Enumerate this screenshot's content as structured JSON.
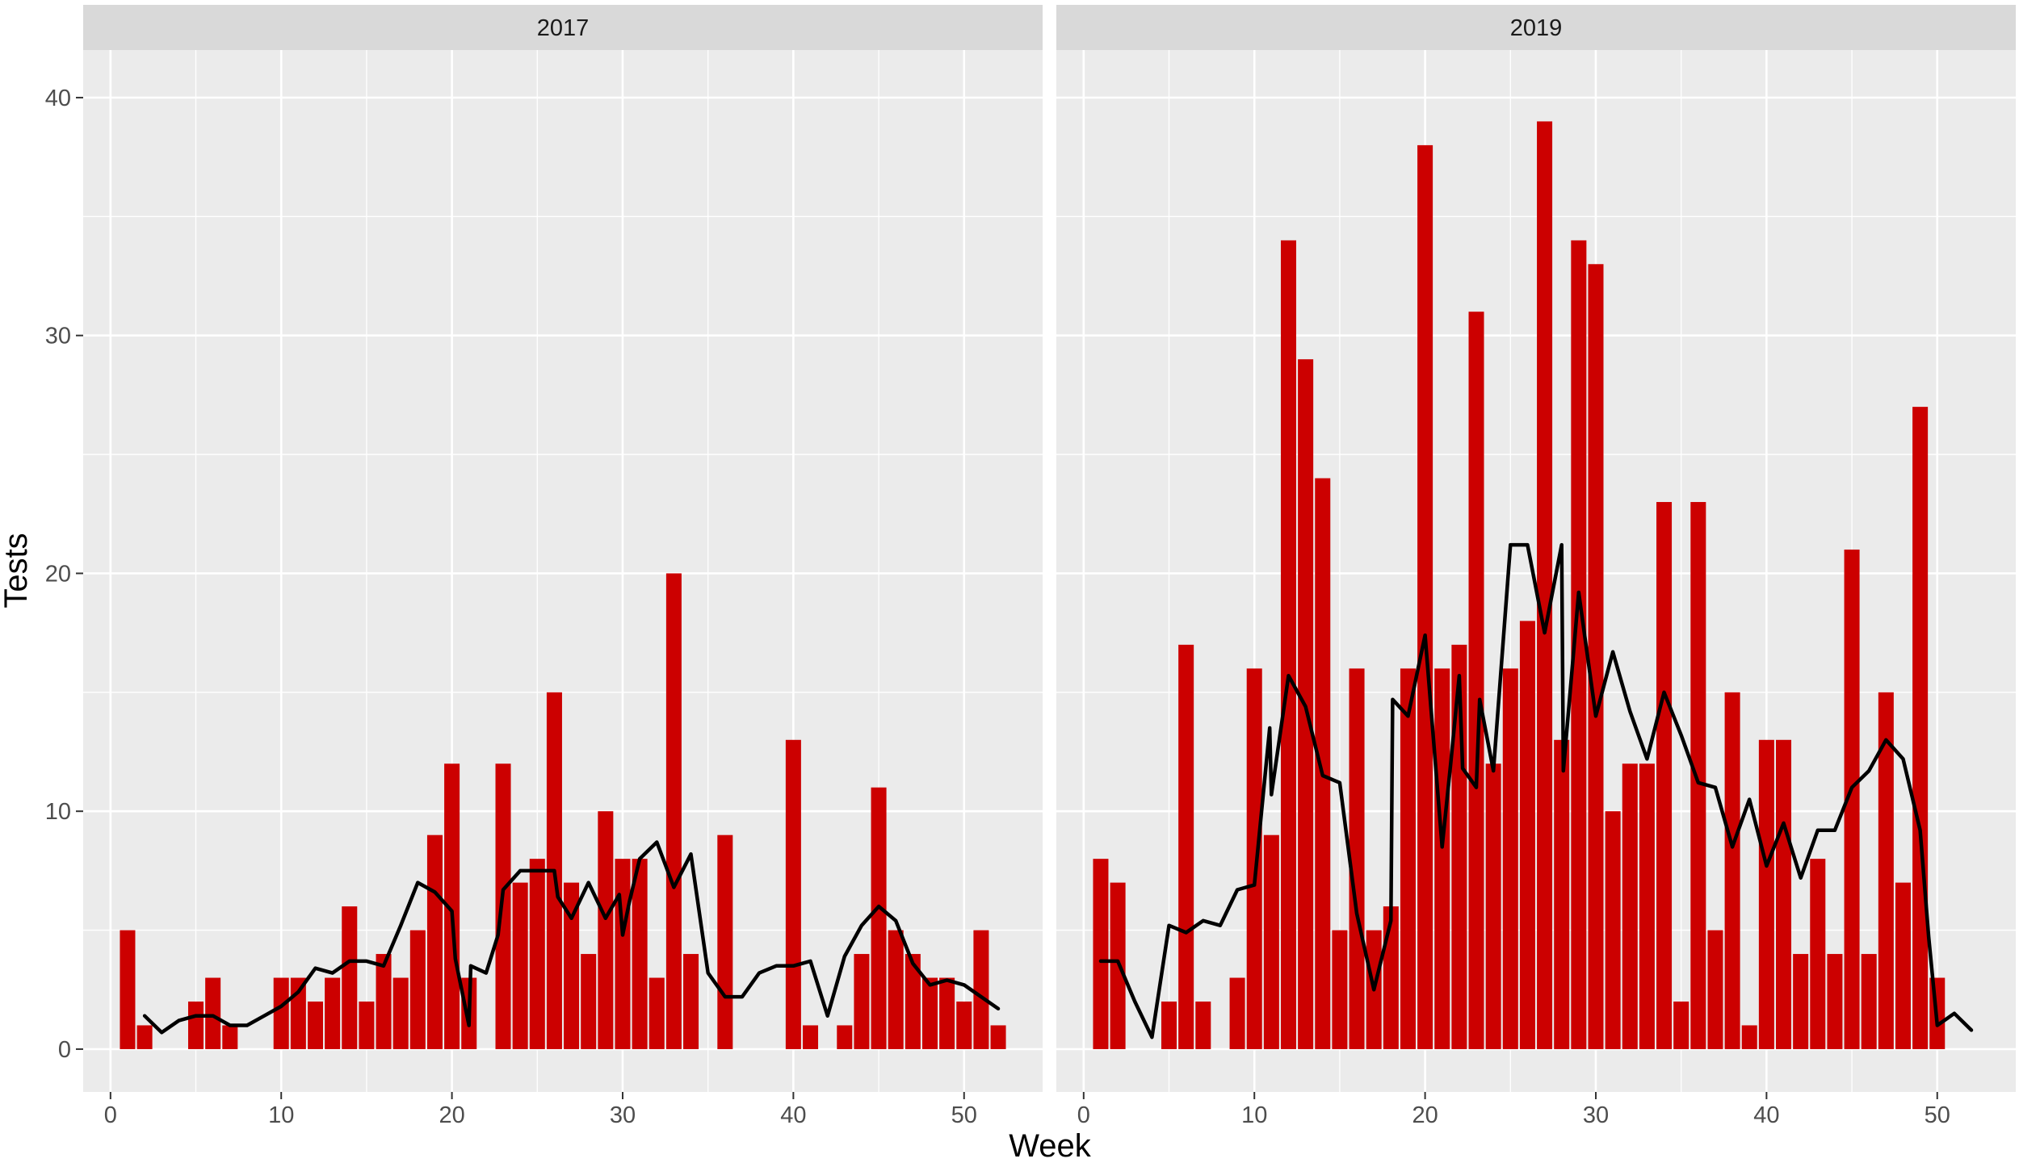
{
  "chart_data": {
    "type": "bar",
    "xlabel": "Week",
    "ylabel": "Tests",
    "ylim": [
      -1.8,
      42
    ],
    "xlim": [
      -1.6,
      54.6
    ],
    "y_ticks": [
      0,
      10,
      20,
      30,
      40
    ],
    "x_ticks": [
      0,
      10,
      20,
      30,
      40,
      50
    ],
    "grid": true,
    "colors": {
      "bar": "#cc0000",
      "line": "#000000",
      "panel": "#ebebeb",
      "strip": "#d9d9d9",
      "grid": "#ffffff"
    },
    "panels": [
      {
        "label": "2017",
        "bars": [
          [
            1,
            5
          ],
          [
            2,
            1
          ],
          [
            5,
            2
          ],
          [
            6,
            3
          ],
          [
            7,
            1
          ],
          [
            10,
            3
          ],
          [
            11,
            3
          ],
          [
            12,
            2
          ],
          [
            13,
            3
          ],
          [
            14,
            6
          ],
          [
            15,
            2
          ],
          [
            16,
            4
          ],
          [
            17,
            3
          ],
          [
            18,
            5
          ],
          [
            19,
            9
          ],
          [
            20,
            12
          ],
          [
            21,
            3
          ],
          [
            23,
            12
          ],
          [
            24,
            7
          ],
          [
            25,
            8
          ],
          [
            26,
            15
          ],
          [
            27,
            7
          ],
          [
            28,
            4
          ],
          [
            29,
            10
          ],
          [
            30,
            8
          ],
          [
            31,
            8
          ],
          [
            32,
            3
          ],
          [
            33,
            20
          ],
          [
            34,
            4
          ],
          [
            36,
            9
          ],
          [
            40,
            13
          ],
          [
            41,
            1
          ],
          [
            43,
            1
          ],
          [
            44,
            4
          ],
          [
            45,
            11
          ],
          [
            46,
            5
          ],
          [
            47,
            4
          ],
          [
            48,
            3
          ],
          [
            49,
            3
          ],
          [
            50,
            2
          ],
          [
            51,
            5
          ],
          [
            52,
            1
          ]
        ],
        "line": [
          [
            2,
            1.4
          ],
          [
            3,
            0.7
          ],
          [
            4,
            1.2
          ],
          [
            5,
            1.4
          ],
          [
            6,
            1.4
          ],
          [
            7,
            1.0
          ],
          [
            8,
            1.0
          ],
          [
            9,
            1.4
          ],
          [
            10,
            1.8
          ],
          [
            11,
            2.4
          ],
          [
            12,
            3.4
          ],
          [
            13,
            3.2
          ],
          [
            14,
            3.7
          ],
          [
            15,
            3.7
          ],
          [
            16,
            3.5
          ],
          [
            17,
            5.2
          ],
          [
            18,
            7.0
          ],
          [
            19,
            6.6
          ],
          [
            20,
            5.8
          ],
          [
            20.2,
            3.8
          ],
          [
            21,
            1.0
          ],
          [
            21.1,
            3.5
          ],
          [
            22,
            3.2
          ],
          [
            22.7,
            4.8
          ],
          [
            23,
            6.7
          ],
          [
            24,
            7.5
          ],
          [
            25,
            7.5
          ],
          [
            26,
            7.5
          ],
          [
            26.2,
            6.4
          ],
          [
            27,
            5.5
          ],
          [
            28,
            7.0
          ],
          [
            29,
            5.5
          ],
          [
            29.8,
            6.5
          ],
          [
            30,
            4.8
          ],
          [
            30.4,
            6.2
          ],
          [
            31,
            8.0
          ],
          [
            32,
            8.7
          ],
          [
            33,
            6.8
          ],
          [
            34,
            8.2
          ],
          [
            35,
            3.2
          ],
          [
            36,
            2.2
          ],
          [
            37,
            2.2
          ],
          [
            38,
            3.2
          ],
          [
            39,
            3.5
          ],
          [
            40,
            3.5
          ],
          [
            41,
            3.7
          ],
          [
            42,
            1.4
          ],
          [
            43,
            3.9
          ],
          [
            44,
            5.2
          ],
          [
            45,
            6.0
          ],
          [
            46,
            5.4
          ],
          [
            47,
            3.6
          ],
          [
            48,
            2.7
          ],
          [
            49,
            2.9
          ],
          [
            50,
            2.7
          ],
          [
            51,
            2.2
          ],
          [
            52,
            1.7
          ]
        ]
      },
      {
        "label": "2019",
        "bars": [
          [
            1,
            8
          ],
          [
            2,
            7
          ],
          [
            5,
            2
          ],
          [
            6,
            17
          ],
          [
            7,
            2
          ],
          [
            9,
            3
          ],
          [
            10,
            16
          ],
          [
            11,
            9
          ],
          [
            12,
            34
          ],
          [
            13,
            29
          ],
          [
            14,
            24
          ],
          [
            15,
            5
          ],
          [
            16,
            16
          ],
          [
            17,
            5
          ],
          [
            18,
            6
          ],
          [
            19,
            16
          ],
          [
            20,
            38
          ],
          [
            21,
            16
          ],
          [
            22,
            17
          ],
          [
            23,
            31
          ],
          [
            24,
            12
          ],
          [
            25,
            16
          ],
          [
            26,
            18
          ],
          [
            27,
            39
          ],
          [
            28,
            13
          ],
          [
            29,
            34
          ],
          [
            30,
            33
          ],
          [
            31,
            10
          ],
          [
            32,
            12
          ],
          [
            33,
            12
          ],
          [
            34,
            23
          ],
          [
            35,
            2
          ],
          [
            36,
            23
          ],
          [
            37,
            5
          ],
          [
            38,
            15
          ],
          [
            39,
            1
          ],
          [
            40,
            13
          ],
          [
            41,
            13
          ],
          [
            42,
            4
          ],
          [
            43,
            8
          ],
          [
            44,
            4
          ],
          [
            45,
            21
          ],
          [
            46,
            4
          ],
          [
            47,
            15
          ],
          [
            48,
            7
          ],
          [
            49,
            27
          ],
          [
            50,
            3
          ]
        ],
        "line": [
          [
            1,
            3.7
          ],
          [
            2,
            3.7
          ],
          [
            3,
            2.0
          ],
          [
            4,
            0.5
          ],
          [
            5,
            5.2
          ],
          [
            6,
            4.9
          ],
          [
            7,
            5.4
          ],
          [
            8,
            5.2
          ],
          [
            9,
            6.7
          ],
          [
            10,
            6.9
          ],
          [
            10.9,
            13.5
          ],
          [
            11,
            10.7
          ],
          [
            12,
            15.7
          ],
          [
            13,
            14.4
          ],
          [
            14,
            11.5
          ],
          [
            15,
            11.2
          ],
          [
            16,
            5.7
          ],
          [
            17,
            2.5
          ],
          [
            18,
            5.4
          ],
          [
            18.1,
            14.7
          ],
          [
            19,
            14.0
          ],
          [
            20,
            17.4
          ],
          [
            21,
            8.5
          ],
          [
            21.5,
            12.0
          ],
          [
            22,
            15.7
          ],
          [
            22.2,
            11.8
          ],
          [
            23,
            11.0
          ],
          [
            23.2,
            14.7
          ],
          [
            24,
            11.7
          ],
          [
            25,
            21.2
          ],
          [
            26,
            21.2
          ],
          [
            27,
            17.5
          ],
          [
            28,
            21.2
          ],
          [
            28.1,
            11.7
          ],
          [
            29,
            19.2
          ],
          [
            30,
            14.0
          ],
          [
            31,
            16.7
          ],
          [
            32,
            14.2
          ],
          [
            33,
            12.2
          ],
          [
            34,
            15.0
          ],
          [
            35,
            13.2
          ],
          [
            36,
            11.2
          ],
          [
            37,
            11.0
          ],
          [
            38,
            8.5
          ],
          [
            39,
            10.5
          ],
          [
            40,
            7.7
          ],
          [
            41,
            9.5
          ],
          [
            42,
            7.2
          ],
          [
            43,
            9.2
          ],
          [
            44,
            9.2
          ],
          [
            45,
            11.0
          ],
          [
            46,
            11.7
          ],
          [
            47,
            13.0
          ],
          [
            48,
            12.2
          ],
          [
            49,
            9.2
          ],
          [
            49.5,
            4.7
          ],
          [
            50,
            1.0
          ],
          [
            51,
            1.5
          ],
          [
            52,
            0.8
          ]
        ]
      }
    ]
  }
}
